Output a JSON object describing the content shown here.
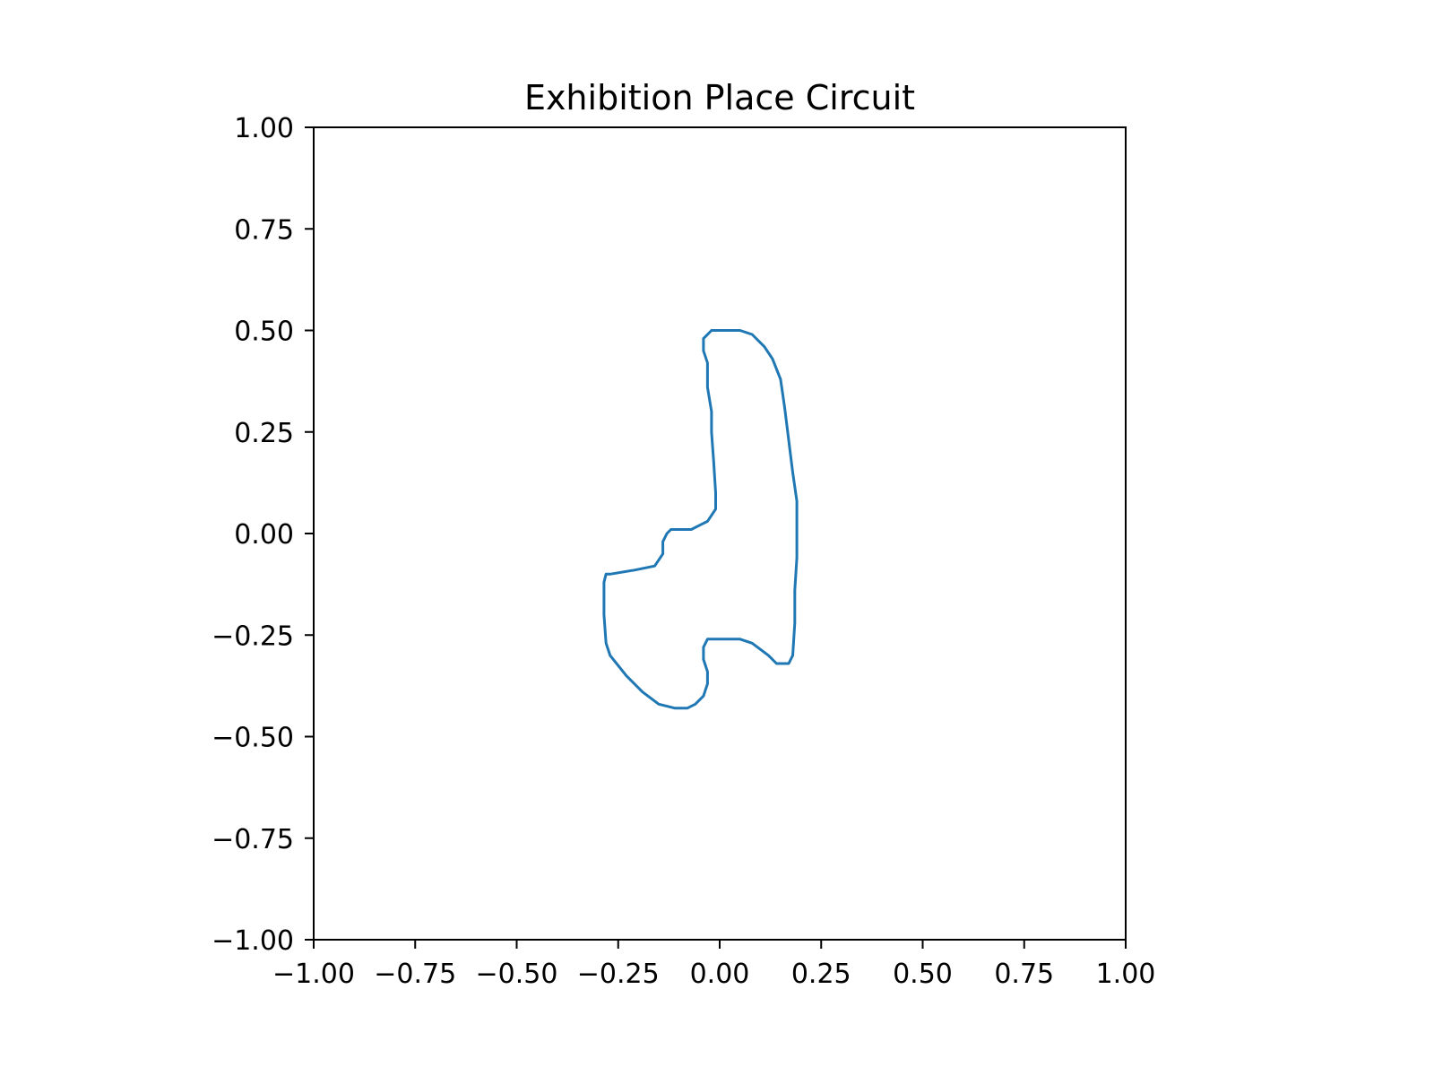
{
  "chart_data": {
    "type": "line",
    "title": "Exhibition Place Circuit",
    "xlabel": "",
    "ylabel": "",
    "xlim": [
      -1.0,
      1.0
    ],
    "ylim": [
      -1.0,
      1.0
    ],
    "xticks": [
      "−1.00",
      "−0.75",
      "−0.50",
      "−0.25",
      "0.00",
      "0.25",
      "0.50",
      "0.75",
      "1.00"
    ],
    "yticks": [
      "1.00",
      "0.75",
      "0.50",
      "0.25",
      "0.00",
      "−0.25",
      "−0.50",
      "−0.75",
      "−1.00"
    ],
    "grid": false,
    "series": [
      {
        "color": "#1f77b4",
        "x": [
          -0.02,
          0.05,
          0.08,
          0.11,
          0.13,
          0.15,
          0.16,
          0.17,
          0.18,
          0.19,
          0.19,
          0.19,
          0.185,
          0.185,
          0.18,
          0.17,
          0.14,
          0.12,
          0.08,
          0.05,
          -0.03,
          -0.04,
          -0.04,
          -0.03,
          -0.03,
          -0.04,
          -0.06,
          -0.08,
          -0.11,
          -0.15,
          -0.19,
          -0.23,
          -0.27,
          -0.28,
          -0.285,
          -0.285,
          -0.28,
          -0.27,
          -0.21,
          -0.16,
          -0.14,
          -0.14,
          -0.13,
          -0.12,
          -0.07,
          -0.05,
          -0.03,
          -0.01,
          -0.01,
          -0.015,
          -0.02,
          -0.02,
          -0.03,
          -0.03,
          -0.04,
          -0.04,
          -0.02
        ],
        "y": [
          0.5,
          0.5,
          0.49,
          0.46,
          0.43,
          0.38,
          0.31,
          0.23,
          0.15,
          0.08,
          0.0,
          -0.06,
          -0.14,
          -0.22,
          -0.3,
          -0.32,
          -0.32,
          -0.3,
          -0.27,
          -0.26,
          -0.26,
          -0.28,
          -0.31,
          -0.34,
          -0.37,
          -0.4,
          -0.42,
          -0.43,
          -0.43,
          -0.42,
          -0.39,
          -0.35,
          -0.3,
          -0.27,
          -0.2,
          -0.12,
          -0.1,
          -0.1,
          -0.09,
          -0.08,
          -0.05,
          -0.02,
          0.0,
          0.01,
          0.01,
          0.02,
          0.03,
          0.06,
          0.1,
          0.18,
          0.25,
          0.3,
          0.36,
          0.42,
          0.45,
          0.48,
          0.5
        ]
      }
    ]
  }
}
